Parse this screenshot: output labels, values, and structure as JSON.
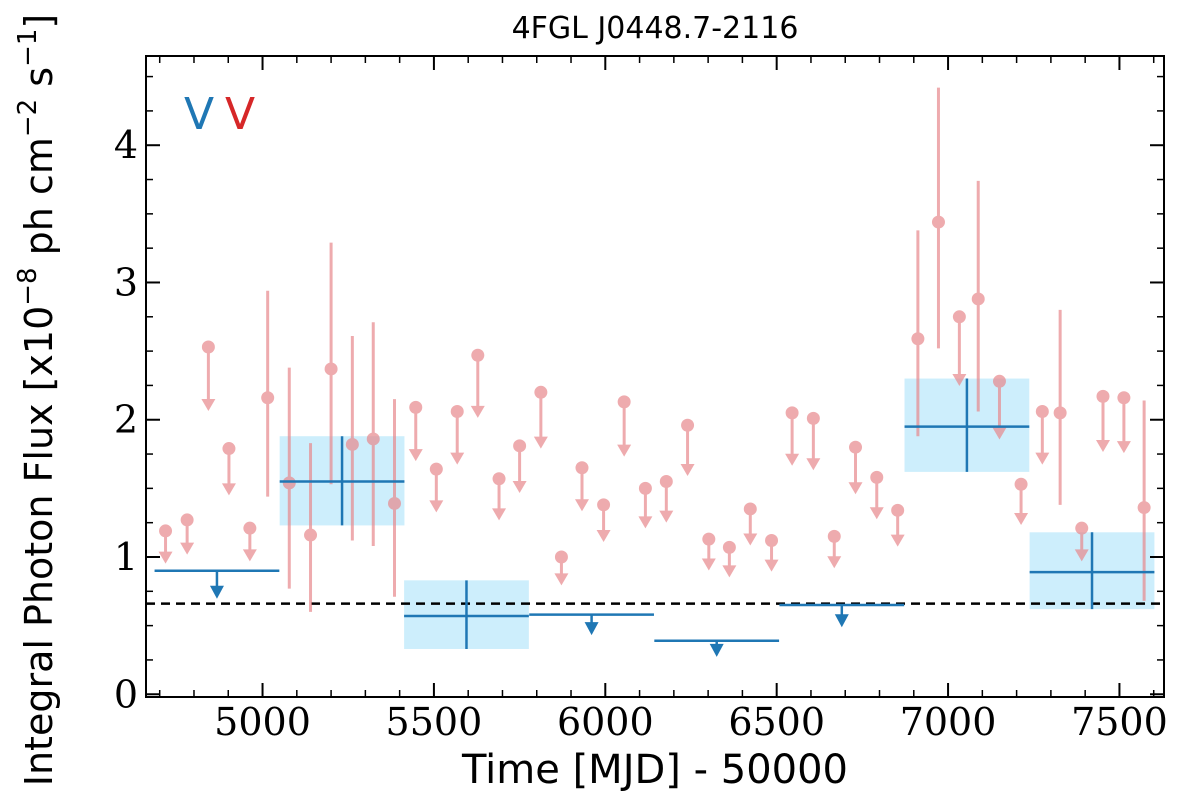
{
  "chart_data": {
    "type": "scatter",
    "title": "4FGL J0448.7-2116",
    "xlabel": "Time [MJD] - 50000",
    "ylabel": "Integral Photon Flux [x10$^{-8}$ ph cm$^{-2}$ s$^{-1}$]",
    "ylabel_parts": {
      "prefix": "Integral Photon Flux [x10",
      "exp1": "−8",
      "mid": " ph cm",
      "exp2": "−2",
      "mid2": " s",
      "exp3": "−1",
      "suffix": "]"
    },
    "xlim": [
      4660,
      7630
    ],
    "ylim": [
      -0.02,
      4.65
    ],
    "xticks": [
      5000,
      5500,
      6000,
      6500,
      7000,
      7500
    ],
    "xtick_labels": [
      "5000",
      "5500",
      "6000",
      "6500",
      "7000",
      "7500"
    ],
    "yticks": [
      0,
      1,
      2,
      3,
      4
    ],
    "ytick_labels": [
      "0",
      "1",
      "2",
      "3",
      "4"
    ],
    "grid": false,
    "band_labels": [
      {
        "text": "V",
        "color": "#1f77b4"
      },
      {
        "text": "V",
        "color": "#d62728"
      }
    ],
    "reference_line": {
      "y": 0.66,
      "style": "dashed",
      "color": "#000000"
    },
    "colors": {
      "coarse": "#1f77b4",
      "coarse_box": "#cdeefc",
      "fine": "#e8888c"
    },
    "coarse_detections": [
      {
        "x": 5232,
        "xerr": 182,
        "y": 1.55,
        "yerr_lo": 0.32,
        "yerr_hi": 0.33
      },
      {
        "x": 5595,
        "xerr": 182,
        "y": 0.57,
        "yerr_lo": 0.24,
        "yerr_hi": 0.26
      },
      {
        "x": 7055,
        "xerr": 182,
        "y": 1.95,
        "yerr_lo": 0.33,
        "yerr_hi": 0.35
      },
      {
        "x": 7420,
        "xerr": 182,
        "y": 0.89,
        "yerr_lo": 0.27,
        "yerr_hi": 0.29
      }
    ],
    "coarse_upper_limits": [
      {
        "x": 4867,
        "xerr": 182,
        "y": 0.9
      },
      {
        "x": 5960,
        "xerr": 182,
        "y": 0.58
      },
      {
        "x": 6325,
        "xerr": 182,
        "y": 0.39
      },
      {
        "x": 6690,
        "xerr": 182,
        "y": 0.65
      }
    ],
    "fine_detections": [
      {
        "x": 5015,
        "y": 2.16,
        "yerr_lo": 0.72,
        "yerr_hi": 0.78
      },
      {
        "x": 5078,
        "y": 1.54,
        "yerr_lo": 0.77,
        "yerr_hi": 0.84
      },
      {
        "x": 5140,
        "y": 1.16,
        "yerr_lo": 0.56,
        "yerr_hi": 0.67
      },
      {
        "x": 5200,
        "y": 2.37,
        "yerr_lo": 0.84,
        "yerr_hi": 0.92
      },
      {
        "x": 5262,
        "y": 1.82,
        "yerr_lo": 0.7,
        "yerr_hi": 0.79
      },
      {
        "x": 5323,
        "y": 1.86,
        "yerr_lo": 0.78,
        "yerr_hi": 0.85
      },
      {
        "x": 5385,
        "y": 1.39,
        "yerr_lo": 0.68,
        "yerr_hi": 0.76
      },
      {
        "x": 6912,
        "y": 2.59,
        "yerr_lo": 0.71,
        "yerr_hi": 0.79
      },
      {
        "x": 6972,
        "y": 3.44,
        "yerr_lo": 0.92,
        "yerr_hi": 0.98
      },
      {
        "x": 7088,
        "y": 2.88,
        "yerr_lo": 0.82,
        "yerr_hi": 0.86
      },
      {
        "x": 7327,
        "y": 2.05,
        "yerr_lo": 0.67,
        "yerr_hi": 0.75
      },
      {
        "x": 7572,
        "y": 1.36,
        "yerr_lo": 0.68,
        "yerr_hi": 0.78
      }
    ],
    "fine_upper_limits": [
      {
        "x": 4717,
        "y": 1.19
      },
      {
        "x": 4780,
        "y": 1.27
      },
      {
        "x": 4842,
        "y": 2.53
      },
      {
        "x": 4902,
        "y": 1.79
      },
      {
        "x": 4963,
        "y": 1.21
      },
      {
        "x": 5447,
        "y": 2.09
      },
      {
        "x": 5507,
        "y": 1.64
      },
      {
        "x": 5568,
        "y": 2.06
      },
      {
        "x": 5628,
        "y": 2.47
      },
      {
        "x": 5690,
        "y": 1.57
      },
      {
        "x": 5750,
        "y": 1.81
      },
      {
        "x": 5812,
        "y": 2.2
      },
      {
        "x": 5872,
        "y": 1.0
      },
      {
        "x": 5932,
        "y": 1.65
      },
      {
        "x": 5995,
        "y": 1.38
      },
      {
        "x": 6055,
        "y": 2.13
      },
      {
        "x": 6117,
        "y": 1.5
      },
      {
        "x": 6178,
        "y": 1.55
      },
      {
        "x": 6240,
        "y": 1.96
      },
      {
        "x": 6302,
        "y": 1.13
      },
      {
        "x": 6362,
        "y": 1.07
      },
      {
        "x": 6423,
        "y": 1.35
      },
      {
        "x": 6485,
        "y": 1.12
      },
      {
        "x": 6545,
        "y": 2.05
      },
      {
        "x": 6607,
        "y": 2.01
      },
      {
        "x": 6668,
        "y": 1.15
      },
      {
        "x": 6730,
        "y": 1.8
      },
      {
        "x": 6792,
        "y": 1.58
      },
      {
        "x": 6853,
        "y": 1.34
      },
      {
        "x": 7033,
        "y": 2.75
      },
      {
        "x": 7150,
        "y": 2.28
      },
      {
        "x": 7213,
        "y": 1.53
      },
      {
        "x": 7275,
        "y": 2.06
      },
      {
        "x": 7390,
        "y": 1.21
      },
      {
        "x": 7452,
        "y": 2.17
      },
      {
        "x": 7513,
        "y": 2.16
      }
    ]
  }
}
